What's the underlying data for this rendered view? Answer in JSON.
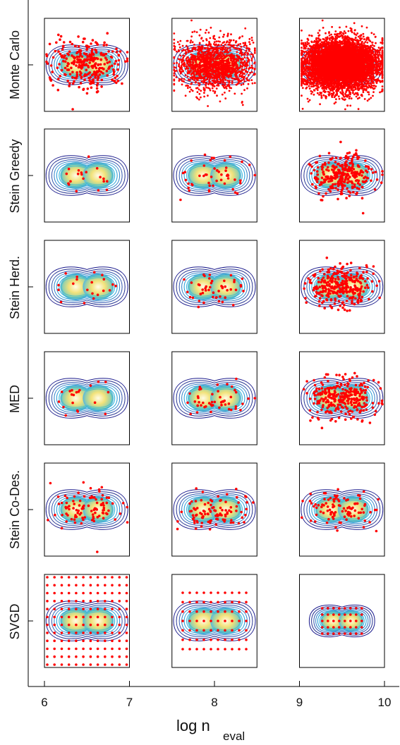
{
  "chart_data": {
    "type": "scatter",
    "xlabel_main": "log n",
    "xlabel_sub": "eval",
    "xlim": [
      6,
      10
    ],
    "xticks": [
      "6",
      "7",
      "8",
      "9",
      "10"
    ],
    "rows": [
      "Monte Carlo",
      "Stein Greedy",
      "Stein Herd.",
      "MED",
      "Stein Co-Des.",
      "SVGD"
    ],
    "columns": [
      {
        "x_range": [
          6,
          7
        ]
      },
      {
        "x_range": [
          7.5,
          8.5
        ]
      },
      {
        "x_range": [
          9,
          10
        ]
      }
    ],
    "point_counts": [
      [
        300,
        1500,
        6000
      ],
      [
        20,
        50,
        300
      ],
      [
        20,
        50,
        300
      ],
      [
        20,
        50,
        300
      ],
      [
        100,
        100,
        100
      ],
      [
        144,
        70,
        40
      ]
    ],
    "target": "two-component Gaussian mixture (contour lines)",
    "colors": {
      "points": "#ff0000",
      "contour_outer": "#1a1a8c",
      "contour_mid": "#1e9bd7",
      "contour_inner": "#f0e070",
      "frame": "#000000"
    }
  }
}
